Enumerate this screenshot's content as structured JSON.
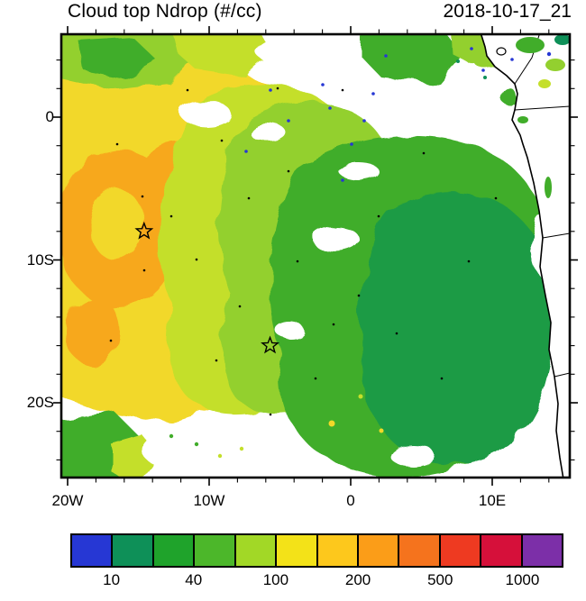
{
  "header": {
    "title": "Cloud top Ndrop (#/cc)",
    "timestamp": "2018-10-17_21"
  },
  "axes": {
    "y_ticks": [
      {
        "label": "0",
        "pos": 92
      },
      {
        "label": "10S",
        "pos": 250.5
      },
      {
        "label": "20S",
        "pos": 409
      }
    ],
    "x_ticks": [
      {
        "label": "20W",
        "pos": 7
      },
      {
        "label": "10W",
        "pos": 164
      },
      {
        "label": "0",
        "pos": 321
      },
      {
        "label": "10E",
        "pos": 478
      }
    ],
    "x_minor_step": 31.4,
    "y_minor_step": 31.7
  },
  "colorbar": {
    "colors": [
      "#2637d4",
      "#0e9058",
      "#1fa32b",
      "#4cb72a",
      "#a2d826",
      "#f3e218",
      "#fdc81c",
      "#fb9d18",
      "#f5731d",
      "#ee3a21",
      "#d6103a",
      "#7c2fa8"
    ],
    "tick_labels": [
      "10",
      "40",
      "100",
      "200",
      "500",
      "1000"
    ],
    "tick_boundary_indices": [
      1,
      3,
      5,
      7,
      9,
      11
    ]
  },
  "chart_data": {
    "type": "heatmap",
    "title": "Cloud top Ndrop (#/cc)",
    "timestamp": "2018-10-17_21",
    "units": "#/cc",
    "x_tick_labels": [
      "20W",
      "10W",
      "0",
      "10E"
    ],
    "y_tick_labels": [
      "0",
      "10S",
      "20S"
    ],
    "lon_range_deg": [
      -20.45,
      15.48
    ],
    "lat_range_deg": [
      -25.24,
      5.8
    ],
    "legend_position": "bottom",
    "grid": false,
    "colorbar_labeled_levels": [
      10,
      40,
      100,
      200,
      500,
      1000
    ],
    "colorbar_colors": [
      "#2637d4",
      "#0e9058",
      "#1fa32b",
      "#4cb72a",
      "#a2d826",
      "#f3e218",
      "#fdc81c",
      "#fb9d18",
      "#f5731d",
      "#ee3a21",
      "#d6103a",
      "#7c2fa8"
    ],
    "markers": [
      {
        "type": "star",
        "lon": -14.6,
        "lat": -8.0
      },
      {
        "type": "star",
        "lon": -5.7,
        "lat": -16.0
      }
    ],
    "regions_summary": [
      {
        "area": "northwest / west offshore (8-20W, 0-12S)",
        "values": "150-300 #/cc (yellow to orange)"
      },
      {
        "area": "central transition band (4-9W)",
        "values": "100-150 #/cc (yellow-green)"
      },
      {
        "area": "central-east (2W-5E)",
        "values": "40-100 #/cc (mid green)"
      },
      {
        "area": "large core east of 0 (0-10E, 8-24S)",
        "values": "20-40 #/cc (dark green)"
      },
      {
        "area": "scattered gaps over domain",
        "values": "no retrieval (white)"
      }
    ]
  }
}
